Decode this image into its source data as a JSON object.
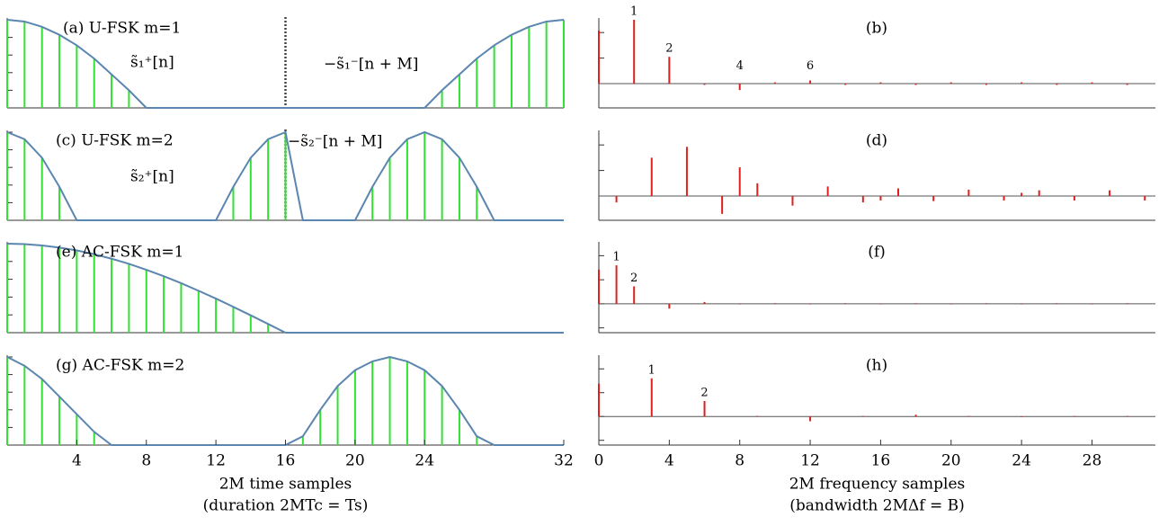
{
  "chart_data": [
    {
      "type": "stem-envelope",
      "title": "(a) U-FSK m=1",
      "annotations": [
        "s̃₁⁺[n]",
        "−s̃₁⁻[n + M]"
      ],
      "x": [
        0,
        1,
        2,
        3,
        4,
        5,
        6,
        7,
        8,
        9,
        10,
        11,
        12,
        13,
        14,
        15,
        16,
        17,
        18,
        19,
        20,
        21,
        22,
        23,
        24,
        25,
        26,
        27,
        28,
        29,
        30,
        31,
        32
      ],
      "values": [
        1,
        0.98,
        0.92,
        0.83,
        0.71,
        0.56,
        0.38,
        0.2,
        0,
        0,
        0,
        0,
        0,
        0,
        0,
        0,
        0,
        0,
        0,
        0,
        0,
        0,
        0,
        0,
        0,
        0.2,
        0.38,
        0.56,
        0.71,
        0.83,
        0.92,
        0.98,
        1
      ],
      "color": "#33e033",
      "envelope_color": "#5a86b0",
      "divider_x": 16,
      "xlim": [
        0,
        32
      ],
      "ylim": [
        0,
        1
      ],
      "ytick_marks": [
        0,
        0.2,
        0.4,
        0.6,
        0.8,
        1
      ]
    },
    {
      "type": "stem",
      "title": "(b)",
      "x": [
        0,
        1,
        2,
        3,
        4,
        5,
        6,
        7,
        8,
        9,
        10,
        11,
        12,
        13,
        14,
        15,
        16,
        17,
        18,
        19,
        20,
        21,
        22,
        23,
        24,
        25,
        26,
        27,
        28,
        29,
        30,
        31
      ],
      "values": [
        0.83,
        0,
        1,
        0,
        0.42,
        0,
        -0.02,
        0,
        -0.1,
        0,
        0.02,
        0,
        0.05,
        0,
        -0.02,
        0,
        0.02,
        0,
        -0.02,
        0,
        0.02,
        0,
        -0.02,
        0,
        0.02,
        0,
        -0.02,
        0,
        0.02,
        0,
        -0.02,
        0
      ],
      "peak_labels": [
        {
          "x": 2,
          "label": "1"
        },
        {
          "x": 4,
          "label": "2"
        },
        {
          "x": 8,
          "label": "4"
        },
        {
          "x": 12,
          "label": "6"
        }
      ],
      "color": "#e02020",
      "zero_line": true,
      "xlim": [
        0,
        31.6
      ],
      "ylim": [
        -0.38,
        1
      ],
      "ytick_marks": [
        -0.4,
        0,
        0.4,
        0.8
      ]
    },
    {
      "type": "stem-envelope",
      "title": "(c) U-FSK m=2",
      "annotations": [
        "−s̃₂⁻[n + M]",
        "s̃₂⁺[n]"
      ],
      "x": [
        0,
        1,
        2,
        3,
        4,
        5,
        6,
        7,
        8,
        9,
        10,
        11,
        12,
        13,
        14,
        15,
        16,
        17,
        18,
        19,
        20,
        21,
        22,
        23,
        24,
        25,
        26,
        27,
        28,
        29,
        30,
        31,
        32
      ],
      "values": [
        1,
        0.92,
        0.71,
        0.38,
        0,
        0,
        0,
        0,
        0,
        0,
        0,
        0,
        0,
        0.38,
        0.71,
        0.92,
        1,
        0,
        0,
        0,
        0,
        0.38,
        0.71,
        0.92,
        1,
        0.92,
        0.71,
        0.38,
        0,
        0,
        0,
        0,
        0
      ],
      "color": "#33e033",
      "envelope_color": "#5a86b0",
      "divider_x": 16,
      "xlim": [
        0,
        32
      ],
      "ylim": [
        0,
        1
      ],
      "ytick_marks": [
        0,
        0.2,
        0.4,
        0.6,
        0.8,
        1
      ]
    },
    {
      "type": "stem",
      "title": "(d)",
      "x": [
        0,
        1,
        2,
        3,
        4,
        5,
        6,
        7,
        8,
        9,
        10,
        11,
        12,
        13,
        14,
        15,
        16,
        17,
        18,
        19,
        20,
        21,
        22,
        23,
        24,
        25,
        26,
        27,
        28,
        29,
        30,
        31
      ],
      "values": [
        0,
        -0.1,
        0,
        0.6,
        0,
        0.77,
        0,
        -0.28,
        0.45,
        0.2,
        0,
        -0.15,
        0,
        0.15,
        0,
        -0.1,
        -0.07,
        0.12,
        0,
        -0.08,
        0,
        0.1,
        0,
        -0.07,
        0.05,
        0.09,
        0,
        -0.07,
        0,
        0.09,
        0,
        -0.07
      ],
      "color": "#e02020",
      "zero_line": true,
      "xlim": [
        0,
        31.6
      ],
      "ylim": [
        -0.38,
        1
      ],
      "ytick_marks": [
        -0.4,
        0,
        0.4,
        0.8
      ]
    },
    {
      "type": "stem-envelope",
      "title": "(e) AC-FSK m=1",
      "x": [
        0,
        1,
        2,
        3,
        4,
        5,
        6,
        7,
        8,
        9,
        10,
        11,
        12,
        13,
        14,
        15,
        16,
        17,
        18,
        19,
        20,
        21,
        22,
        23,
        24,
        25,
        26,
        27,
        28,
        29,
        30,
        31,
        32
      ],
      "values": [
        1,
        0.995,
        0.98,
        0.956,
        0.924,
        0.882,
        0.831,
        0.773,
        0.707,
        0.634,
        0.556,
        0.471,
        0.383,
        0.29,
        0.195,
        0.098,
        0,
        0,
        0,
        0,
        0,
        0,
        0,
        0,
        0,
        0,
        0,
        0,
        0,
        0,
        0,
        0,
        0
      ],
      "color": "#33e033",
      "envelope_color": "#5a86b0",
      "xlim": [
        0,
        32
      ],
      "ylim": [
        0,
        1
      ],
      "ytick_marks": [
        0,
        0.2,
        0.4,
        0.6,
        0.8,
        1
      ]
    },
    {
      "type": "stem",
      "title": "(f)",
      "x": [
        0,
        1,
        2,
        3,
        4,
        5,
        6,
        7,
        8,
        9,
        10,
        11,
        12,
        13,
        14,
        15,
        16,
        17,
        18,
        19,
        20,
        21,
        22,
        23,
        24,
        25,
        26,
        27,
        28,
        29,
        30,
        31
      ],
      "values": [
        0.57,
        0.64,
        0.29,
        0,
        -0.08,
        0,
        0.03,
        0,
        -0.01,
        0,
        0.01,
        0,
        -0.01,
        0,
        0.01,
        0,
        -0.01,
        0,
        0.01,
        0,
        -0.01,
        0,
        0.01,
        0,
        -0.01,
        0,
        0.01,
        0,
        -0.01,
        0,
        0.01,
        0
      ],
      "peak_labels": [
        {
          "x": 1,
          "label": "1"
        },
        {
          "x": 2,
          "label": "2"
        }
      ],
      "color": "#e02020",
      "zero_line": true,
      "xlim": [
        0,
        31.6
      ],
      "ylim": [
        -0.48,
        1
      ],
      "ytick_marks": [
        -0.4,
        0,
        0.4,
        0.8
      ]
    },
    {
      "type": "stem-envelope",
      "title": "(g) AC-FSK m=2",
      "x": [
        0,
        1,
        2,
        3,
        4,
        5,
        6,
        7,
        8,
        9,
        10,
        11,
        12,
        13,
        14,
        15,
        16,
        17,
        18,
        19,
        20,
        21,
        22,
        23,
        24,
        25,
        26,
        27,
        28,
        29,
        30,
        31,
        32
      ],
      "values": [
        1,
        0.9,
        0.75,
        0.55,
        0.35,
        0.15,
        0,
        0,
        0,
        0,
        0,
        0,
        0,
        0,
        0,
        0,
        0,
        0.1,
        0.4,
        0.67,
        0.85,
        0.95,
        1,
        0.95,
        0.85,
        0.67,
        0.4,
        0.1,
        0,
        0,
        0,
        0,
        0
      ],
      "color": "#33e033",
      "envelope_color": "#5a86b0",
      "xlim": [
        0,
        32
      ],
      "ylim": [
        0,
        1
      ],
      "ytick_marks": [
        0,
        0.2,
        0.4,
        0.6,
        0.8,
        1
      ],
      "xticks": [
        4,
        8,
        12,
        16,
        20,
        24,
        32
      ],
      "xlabel": [
        "2M time samples",
        "(duration 2MTc = Ts)"
      ]
    },
    {
      "type": "stem",
      "title": "(h)",
      "x": [
        0,
        1,
        2,
        3,
        4,
        5,
        6,
        7,
        8,
        9,
        10,
        11,
        12,
        13,
        14,
        15,
        16,
        17,
        18,
        19,
        20,
        21,
        22,
        23,
        24,
        25,
        26,
        27,
        28,
        29,
        30,
        31
      ],
      "values": [
        0.55,
        0,
        0,
        0.64,
        0,
        0,
        0.26,
        0,
        0,
        0.01,
        0,
        0,
        -0.08,
        0,
        0,
        0.01,
        0,
        0,
        0.03,
        0,
        0,
        0.01,
        0,
        0,
        -0.01,
        0,
        0,
        0.01,
        0,
        0,
        0.01,
        0
      ],
      "peak_labels": [
        {
          "x": 3,
          "label": "1"
        },
        {
          "x": 6,
          "label": "2"
        }
      ],
      "color": "#e02020",
      "zero_line": true,
      "xlim": [
        0,
        31.6
      ],
      "ylim": [
        -0.48,
        1
      ],
      "ytick_marks": [
        -0.4,
        0,
        0.4,
        0.8
      ],
      "xticks": [
        0,
        4,
        8,
        12,
        16,
        20,
        24,
        28
      ],
      "xlabel": [
        "2M frequency samples",
        "(bandwidth 2MΔf = B)"
      ]
    }
  ]
}
